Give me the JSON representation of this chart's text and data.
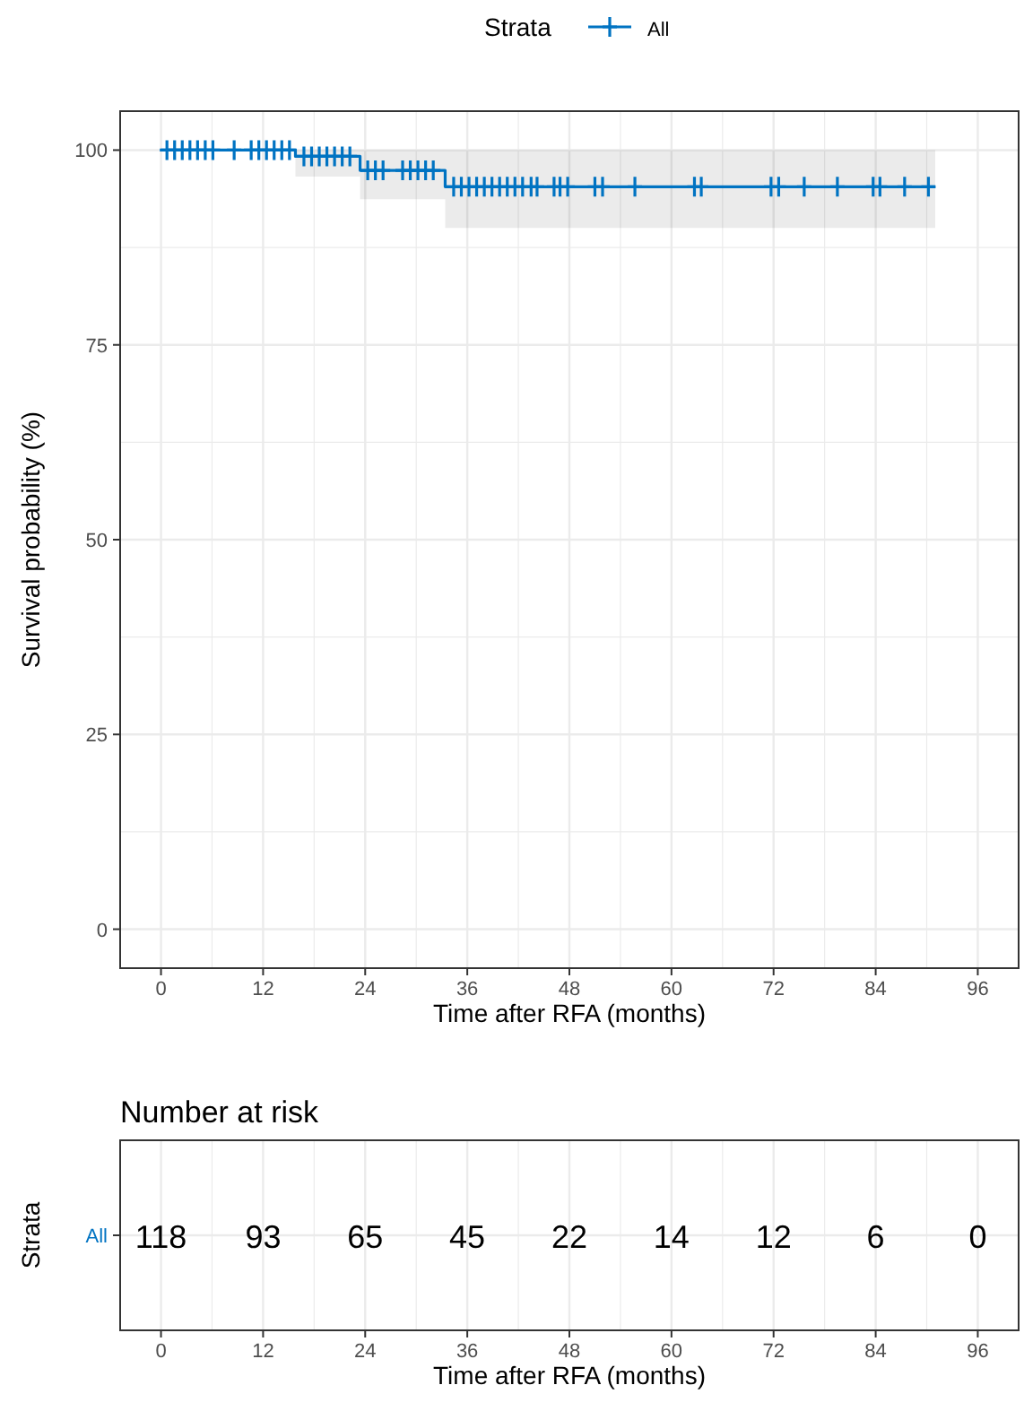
{
  "chart_data": [
    {
      "type": "step",
      "xlabel": "Time after RFA (months)",
      "ylabel": "Survival probability (%)",
      "legend_title": "Strata",
      "legend": "top",
      "grid": true,
      "xlim": [
        -4.8,
        100.8
      ],
      "xticks": [
        0,
        12,
        24,
        36,
        48,
        60,
        72,
        84,
        96
      ],
      "ylim": [
        -5,
        105
      ],
      "yticks": [
        0,
        25,
        50,
        75,
        100
      ],
      "series": [
        {
          "name": "All",
          "color": "#0073c2",
          "type": "step",
          "marker": "none",
          "x": [
            0,
            15.8,
            23.4,
            33.4,
            91
          ],
          "values": [
            100,
            99.2,
            97.4,
            95.3,
            95.3
          ],
          "lower": [
            100,
            96.6,
            93.7,
            90.0,
            90.0
          ],
          "upper": [
            100,
            100,
            100,
            100,
            100
          ]
        },
        {
          "color": "#0073c2",
          "type": "scatter",
          "marker": "cross",
          "x": [
            0.7,
            1.6,
            2.5,
            3.4,
            4.3,
            5.2,
            6.1,
            8.6,
            10.6,
            11.5,
            12.4,
            13.3,
            14.2,
            15.1,
            16.8,
            17.7,
            18.6,
            19.5,
            20.4,
            21.3,
            22.2,
            24.3,
            25.2,
            26.1,
            28.4,
            29.3,
            30.2,
            31.1,
            32.0,
            34.4,
            35.3,
            36.2,
            37.1,
            38.0,
            38.9,
            39.8,
            40.7,
            41.6,
            42.5,
            43.5,
            44.2,
            46.2,
            46.9,
            47.8,
            51.0,
            51.9,
            55.7,
            62.7,
            63.5,
            71.7,
            72.6,
            75.6,
            79.5,
            83.7,
            84.5,
            87.4,
            90.2
          ],
          "values": [
            100,
            100,
            100,
            100,
            100,
            100,
            100,
            100,
            100,
            100,
            100,
            100,
            100,
            100,
            99.2,
            99.2,
            99.2,
            99.2,
            99.2,
            99.2,
            99.2,
            97.4,
            97.4,
            97.4,
            97.4,
            97.4,
            97.4,
            97.4,
            97.4,
            95.3,
            95.3,
            95.3,
            95.3,
            95.3,
            95.3,
            95.3,
            95.3,
            95.3,
            95.3,
            95.3,
            95.3,
            95.3,
            95.3,
            95.3,
            95.3,
            95.3,
            95.3,
            95.3,
            95.3,
            95.3,
            95.3,
            95.3,
            95.3,
            95.3,
            95.3,
            95.3,
            95.3
          ]
        }
      ]
    },
    {
      "type": "heatmap",
      "title": "Number at risk",
      "xlabel": "Time after RFA (months)",
      "ylabel": "Strata",
      "grid": true,
      "data_labels": true,
      "color": "#0073c2",
      "categories": [
        "0",
        "12",
        "24",
        "36",
        "48",
        "60",
        "72",
        "84",
        "96"
      ],
      "y_categories": [
        "All"
      ],
      "cells": [
        [
          118,
          93,
          65,
          45,
          22,
          14,
          12,
          6,
          0
        ]
      ]
    }
  ]
}
